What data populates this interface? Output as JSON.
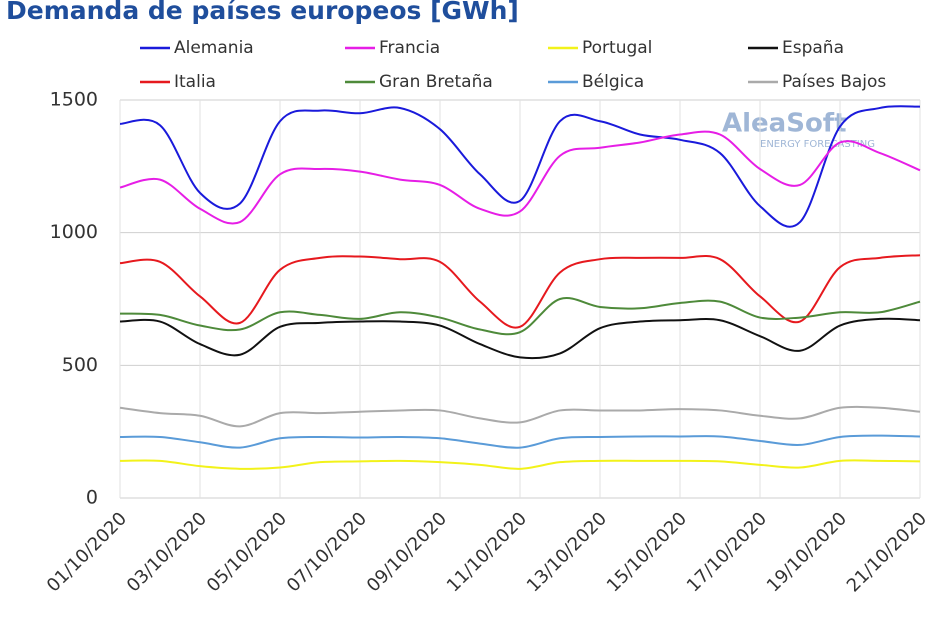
{
  "chart_data": {
    "type": "line",
    "title": "Demanda de países europeos [GWh]",
    "watermark": {
      "brand": "AleaSoft",
      "tagline": "ENERGY FORECASTING"
    },
    "categories": [
      "01/10/2020",
      null,
      "03/10/2020",
      null,
      "05/10/2020",
      null,
      "07/10/2020",
      null,
      "09/10/2020",
      null,
      "11/10/2020",
      null,
      "13/10/2020",
      null,
      "15/10/2020",
      null,
      "17/10/2020",
      null,
      "19/10/2020",
      null,
      "21/10/2020"
    ],
    "ylim": [
      0,
      1500
    ],
    "yticks": [
      0,
      500,
      1000,
      1500
    ],
    "grid": true,
    "series": [
      {
        "name": "Alemania",
        "color": "#1a1adb",
        "values": [
          1410,
          1405,
          1150,
          1110,
          1420,
          1460,
          1450,
          1470,
          1390,
          1220,
          1120,
          1420,
          1420,
          1370,
          1350,
          1300,
          1100,
          1040,
          1400,
          1470,
          1475
        ]
      },
      {
        "name": "Francia",
        "color": "#e61ee6",
        "values": [
          1170,
          1200,
          1090,
          1040,
          1220,
          1240,
          1230,
          1200,
          1180,
          1090,
          1080,
          1290,
          1320,
          1340,
          1370,
          1370,
          1240,
          1180,
          1340,
          1300,
          1235
        ]
      },
      {
        "name": "Portugal",
        "color": "#f2f21a",
        "values": [
          140,
          140,
          120,
          110,
          115,
          135,
          138,
          140,
          135,
          125,
          110,
          135,
          140,
          140,
          140,
          138,
          125,
          115,
          140,
          140,
          138
        ]
      },
      {
        "name": "España",
        "color": "#111111",
        "values": [
          665,
          665,
          580,
          540,
          645,
          660,
          665,
          665,
          650,
          580,
          530,
          545,
          640,
          665,
          670,
          670,
          610,
          555,
          650,
          675,
          670
        ]
      },
      {
        "name": "Italia",
        "color": "#e6191e",
        "values": [
          885,
          890,
          760,
          660,
          860,
          905,
          910,
          900,
          890,
          740,
          645,
          850,
          900,
          905,
          905,
          900,
          760,
          665,
          870,
          905,
          915
        ]
      },
      {
        "name": "Gran Bretaña",
        "color": "#4e8a3a",
        "values": [
          695,
          690,
          650,
          635,
          700,
          690,
          675,
          700,
          680,
          635,
          625,
          750,
          720,
          715,
          735,
          740,
          680,
          680,
          700,
          700,
          740
        ]
      },
      {
        "name": "Bélgica",
        "color": "#5a9bd8",
        "values": [
          230,
          230,
          210,
          190,
          225,
          230,
          228,
          230,
          225,
          205,
          190,
          225,
          230,
          232,
          232,
          232,
          215,
          200,
          230,
          235,
          232
        ]
      },
      {
        "name": "Países Bajos",
        "color": "#aaaaaa",
        "values": [
          340,
          320,
          310,
          270,
          320,
          320,
          325,
          330,
          330,
          300,
          285,
          330,
          330,
          330,
          335,
          330,
          310,
          300,
          340,
          340,
          325
        ]
      }
    ]
  }
}
